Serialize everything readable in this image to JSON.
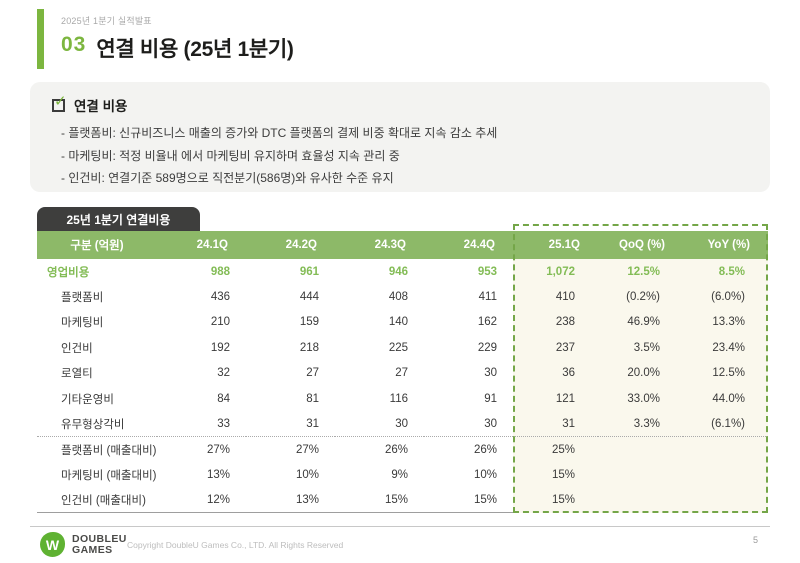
{
  "slide": {
    "eyebrow": "2025년 1분기 실적발표",
    "section_number": "03",
    "title": "연결 비용 (25년 1분기)",
    "page_number": "5"
  },
  "summary": {
    "heading": "연결 비용",
    "bullets": [
      "- 플랫폼비: 신규비즈니스 매출의 증가와 DTC 플랫폼의 결제 비중 확대로 지속 감소 추세",
      "- 마케팅비: 적정 비율내 에서 마케팅비 유지하며 효율성 지속 관리 중",
      "- 인건비: 연결기준 589명으로 직전분기(586명)와 유사한 수준 유지"
    ]
  },
  "table": {
    "tab_label": "25년 1분기 연결비용",
    "columns": [
      "구분 (억원)",
      "24.1Q",
      "24.2Q",
      "24.3Q",
      "24.4Q",
      "25.1Q",
      "QoQ (%)",
      "YoY (%)"
    ],
    "rows": [
      {
        "label": "영업비용",
        "values": [
          "988",
          "961",
          "946",
          "953",
          "1,072",
          "12.5%",
          "8.5%"
        ],
        "emphasis": true,
        "indent": false,
        "separator": false
      },
      {
        "label": "플랫폼비",
        "values": [
          "436",
          "444",
          "408",
          "411",
          "410",
          "(0.2%)",
          "(6.0%)"
        ],
        "emphasis": false,
        "indent": true,
        "separator": false
      },
      {
        "label": "마케팅비",
        "values": [
          "210",
          "159",
          "140",
          "162",
          "238",
          "46.9%",
          "13.3%"
        ],
        "emphasis": false,
        "indent": true,
        "separator": false
      },
      {
        "label": "인건비",
        "values": [
          "192",
          "218",
          "225",
          "229",
          "237",
          "3.5%",
          "23.4%"
        ],
        "emphasis": false,
        "indent": true,
        "separator": false
      },
      {
        "label": "로열티",
        "values": [
          "32",
          "27",
          "27",
          "30",
          "36",
          "20.0%",
          "12.5%"
        ],
        "emphasis": false,
        "indent": true,
        "separator": false
      },
      {
        "label": "기타운영비",
        "values": [
          "84",
          "81",
          "116",
          "91",
          "121",
          "33.0%",
          "44.0%"
        ],
        "emphasis": false,
        "indent": true,
        "separator": false
      },
      {
        "label": "유무형상각비",
        "values": [
          "33",
          "31",
          "30",
          "30",
          "31",
          "3.3%",
          "(6.1%)"
        ],
        "emphasis": false,
        "indent": true,
        "separator": false
      },
      {
        "label": "플랫폼비 (매출대비)",
        "values": [
          "27%",
          "27%",
          "26%",
          "26%",
          "25%",
          "",
          ""
        ],
        "emphasis": false,
        "indent": true,
        "separator": true
      },
      {
        "label": "마케팅비 (매출대비)",
        "values": [
          "13%",
          "10%",
          "9%",
          "10%",
          "15%",
          "",
          ""
        ],
        "emphasis": false,
        "indent": true,
        "separator": false
      },
      {
        "label": "인건비 (매출대비)",
        "values": [
          "12%",
          "13%",
          "15%",
          "15%",
          "15%",
          "",
          ""
        ],
        "emphasis": false,
        "indent": true,
        "separator": false
      }
    ]
  },
  "footer": {
    "logo_line1": "DOUBLEU",
    "logo_line2": "GAMES",
    "copyright": "Copyright DoubleU Games Co., LTD. All Rights Reserved"
  },
  "icons": {
    "checkbox_check": "✓",
    "logo_mark": "W"
  },
  "colors": {
    "accent_green": "#7CB63F",
    "row_green": "#83BC56",
    "header_green": "#8DB968",
    "tab_dark": "#3E3E3D",
    "summary_bg": "#F3F3F1",
    "highlight_bg": "#FAF8ED",
    "dashed_border": "#74A648",
    "text_dark": "#3A3A3A",
    "muted_text": "#A9A9A9",
    "logo_green": "#5FB232",
    "footer_text": "#BDBDBD"
  }
}
